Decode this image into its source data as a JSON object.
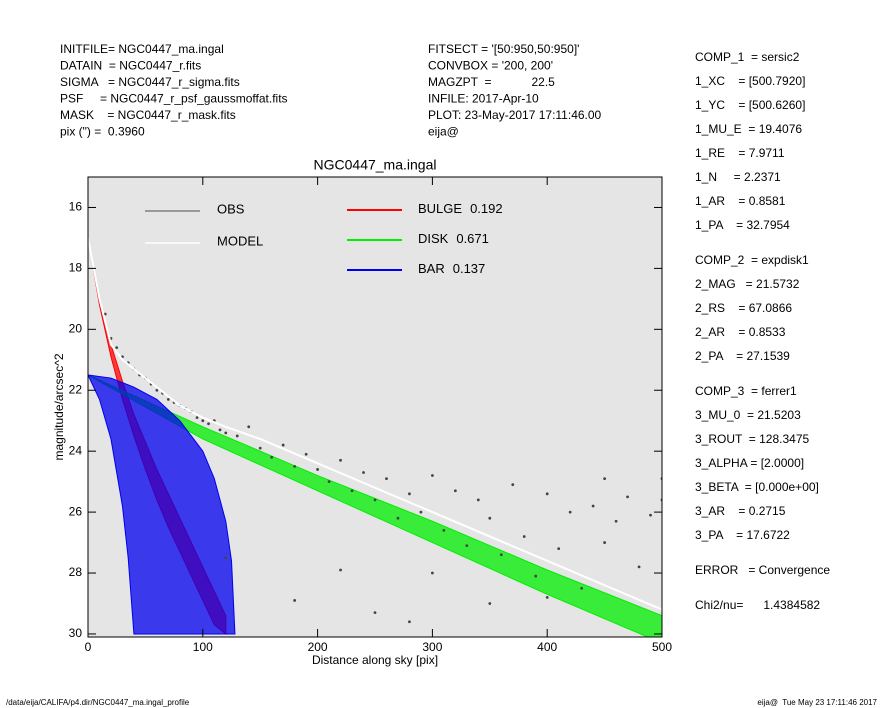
{
  "header": {
    "left": [
      "INITFILE= NGC0447_ma.ingal",
      "DATAIN  = NGC0447_r.fits",
      "SIGMA   = NGC0447_r_sigma.fits",
      "PSF     = NGC0447_r_psf_gaussmoffat.fits",
      "MASK    = NGC0447_r_mask.fits",
      "pix (\") =  0.3960"
    ],
    "middle": [
      "FITSECT = '[50:950,50:950]'",
      "CONVBOX = '200, 200'",
      "MAGZPT  =            22.5",
      "INFILE: 2017-Apr-10",
      "PLOT: 23-May-2017 17:11:46.00",
      "eija@"
    ]
  },
  "params": [
    [
      "COMP_1  = sersic2",
      "1_XC    = [500.7920]",
      "1_YC    = [500.6260]",
      "1_MU_E  = 19.4076",
      "1_RE    = 7.9711",
      "1_N     = 2.2371",
      "1_AR    = 0.8581",
      "1_PA    = 32.7954"
    ],
    [
      "COMP_2  = expdisk1",
      "2_MAG   = 21.5732",
      "2_RS    = 67.0866",
      "2_AR    = 0.8533",
      "2_PA    = 27.1539"
    ],
    [
      "COMP_3  = ferrer1",
      "3_MU_0  = 21.5203",
      "3_ROUT  = 128.3475",
      "3_ALPHA = [2.0000]",
      "3_BETA  = [0.000e+00]",
      "3_AR    = 0.2715",
      "3_PA    = 17.6722"
    ],
    [
      "ERROR   = Convergence"
    ],
    [
      "Chi2/nu=      1.4384582"
    ]
  ],
  "footer": {
    "left": "/data/eija/CALIFA/p4.dir/NGC0447_ma.ingal_profile",
    "right": "eija@  Tue May 23 17:11:46 2017"
  },
  "chart_data": {
    "type": "scatter",
    "title": "NGC0447_ma.ingal",
    "x_label": "Distance along sky [pix]",
    "y_label": "magnitude/arcsec^2",
    "xlim": [
      0,
      500
    ],
    "ylim": [
      30.1,
      15
    ],
    "xticks": [
      0,
      100,
      200,
      300,
      400,
      500
    ],
    "yticks": [
      16,
      18,
      20,
      22,
      24,
      26,
      28,
      30
    ],
    "background": "#e5e5e5",
    "series": [
      {
        "name": "OBS",
        "kind": "points",
        "color": "#444444",
        "legend_color": "#808080",
        "x": [
          15,
          20,
          25,
          30,
          35,
          40,
          45,
          50,
          55,
          60,
          65,
          70,
          75,
          80,
          85,
          90,
          95,
          100,
          105,
          110,
          115,
          120,
          130,
          140,
          150,
          160,
          170,
          180,
          190,
          200,
          210,
          220,
          230,
          240,
          250,
          260,
          270,
          280,
          290,
          300,
          310,
          320,
          330,
          340,
          350,
          360,
          370,
          380,
          390,
          400,
          410,
          420,
          430,
          440,
          450,
          460,
          470,
          480,
          490,
          500,
          120,
          180,
          250,
          300,
          350,
          400,
          450,
          500,
          220,
          280
        ],
        "y": [
          19.5,
          20.3,
          20.6,
          20.9,
          21.1,
          21.3,
          21.5,
          21.6,
          21.8,
          22.0,
          22.1,
          22.3,
          22.4,
          22.5,
          22.6,
          22.7,
          22.9,
          23.0,
          23.1,
          23.0,
          23.3,
          23.4,
          23.5,
          23.2,
          23.9,
          24.2,
          23.8,
          24.5,
          24.1,
          24.6,
          25.0,
          24.3,
          25.3,
          24.7,
          25.6,
          24.9,
          26.2,
          25.4,
          26.0,
          24.8,
          26.6,
          25.3,
          27.1,
          25.6,
          26.2,
          27.4,
          25.1,
          26.8,
          28.1,
          25.4,
          27.2,
          26.0,
          28.5,
          25.8,
          27.0,
          26.3,
          25.5,
          27.8,
          26.1,
          25.6,
          27.5,
          28.9,
          29.3,
          28.0,
          29.0,
          28.8,
          24.9,
          24.9,
          27.9,
          29.6
        ]
      },
      {
        "name": "MODEL",
        "kind": "line",
        "color": "#ffffff",
        "x": [
          0,
          10,
          20,
          30,
          40,
          60,
          80,
          100,
          120,
          150,
          200,
          300,
          400,
          500
        ],
        "y": [
          17.0,
          19.0,
          20.5,
          21.0,
          21.3,
          21.9,
          22.5,
          22.9,
          23.2,
          23.6,
          24.4,
          26.0,
          27.6,
          29.2
        ]
      },
      {
        "name": "BULGE",
        "fraction": 0.192,
        "kind": "band",
        "color": "#ff0000",
        "edges": [
          {
            "x": [
              0,
              10,
              20,
              30,
              40,
              50,
              60,
              70,
              80,
              90,
              100,
              110,
              120
            ],
            "y": [
              17.0,
              19.0,
              20.5,
              21.7,
              22.8,
              23.7,
              24.6,
              25.4,
              26.2,
              27.0,
              27.8,
              28.6,
              29.4
            ]
          },
          {
            "x": [
              0,
              10,
              20,
              30,
              40,
              50,
              60,
              70,
              80,
              90,
              100,
              110,
              120
            ],
            "y": [
              17.0,
              19.2,
              20.9,
              22.3,
              23.5,
              24.6,
              25.6,
              26.5,
              27.3,
              28.1,
              28.9,
              29.7,
              30.0
            ]
          }
        ]
      },
      {
        "name": "DISK",
        "fraction": 0.671,
        "kind": "band",
        "color": "#00ee00",
        "edges": [
          {
            "x": [
              0,
              100,
              200,
              300,
              400,
              500
            ],
            "y": [
              21.5,
              23.2,
              24.8,
              26.3,
              27.9,
              29.4
            ]
          },
          {
            "x": [
              0,
              100,
              200,
              300,
              400,
              500
            ],
            "y": [
              21.5,
              23.6,
              25.3,
              27.0,
              28.7,
              30.3
            ]
          }
        ]
      },
      {
        "name": "BAR",
        "fraction": 0.137,
        "kind": "band",
        "color": "#0000ee",
        "edges": [
          {
            "x": [
              0,
              20,
              40,
              60,
              80,
              100,
              110,
              120,
              125,
              128
            ],
            "y": [
              21.5,
              21.6,
              21.9,
              22.3,
              23.0,
              24.0,
              24.9,
              26.3,
              27.6,
              30.0
            ]
          },
          {
            "x": [
              0,
              10,
              20,
              30,
              35,
              40
            ],
            "y": [
              21.5,
              22.3,
              23.6,
              25.8,
              27.5,
              30.0
            ]
          }
        ]
      }
    ]
  }
}
